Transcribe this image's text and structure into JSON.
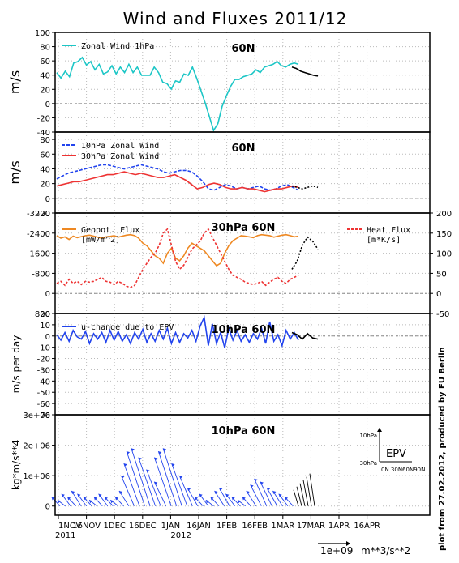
{
  "title": "Wind and Fluxes 2011/12",
  "credit": "plot from 27.02.2012, produced by FU Berlin",
  "x_ticks": [
    "1NOV",
    "16NOV",
    "1DEC",
    "16DEC",
    "1JAN",
    "16JAN",
    "1FEB",
    "16FEB",
    "1MAR",
    "17MAR",
    "1APR",
    "16APR"
  ],
  "x_year_labels": [
    "2011",
    "2012"
  ],
  "bottom_scale": {
    "ref": "1e+09",
    "unit": "m**3/s**2"
  },
  "colors": {
    "cyan": "#1cc6c6",
    "blue": "#2244ee",
    "red": "#ee3333",
    "orange": "#ee8822",
    "forecast": "#000000"
  },
  "chart_data": [
    {
      "id": "p1",
      "type": "line",
      "ylabel": "m/s",
      "region": "60N",
      "ylim": [
        -40,
        100
      ],
      "y_ticks": [
        "100",
        "80",
        "60",
        "40",
        "20",
        "0",
        "-20",
        "-40"
      ],
      "series": [
        {
          "name": "Zonal Wind 1hPa",
          "color": "cyan",
          "values": [
            44,
            36,
            46,
            38,
            58,
            60,
            66,
            55,
            60,
            48,
            56,
            42,
            45,
            54,
            42,
            52,
            44,
            56,
            44,
            52,
            40,
            40,
            40,
            52,
            44,
            30,
            28,
            20,
            32,
            30,
            42,
            40,
            52,
            36,
            18,
            0,
            -20,
            -40,
            -30,
            -5,
            10,
            24,
            34,
            34,
            38,
            40,
            42,
            48,
            44,
            52,
            54,
            56,
            60,
            54,
            52,
            56,
            58,
            56
          ]
        },
        {
          "name": "",
          "color": "forecast",
          "values": [
            52,
            50,
            46,
            44,
            42,
            40,
            39
          ]
        }
      ]
    },
    {
      "id": "p2",
      "type": "line",
      "ylabel": "m/s",
      "region": "60N",
      "ylim": [
        -20,
        90
      ],
      "y_ticks": [
        "80",
        "60",
        "40",
        "20",
        "0",
        "-20"
      ],
      "series": [
        {
          "name": "10hPa Zonal Wind",
          "color": "blue",
          "values": [
            26,
            30,
            34,
            36,
            38,
            40,
            42,
            44,
            46,
            46,
            44,
            42,
            40,
            42,
            44,
            46,
            44,
            42,
            40,
            36,
            34,
            36,
            38,
            38,
            36,
            30,
            22,
            12,
            10,
            14,
            18,
            16,
            12,
            14,
            12,
            14,
            16,
            12,
            10,
            12,
            16,
            18,
            14,
            10
          ]
        },
        {
          "name": "30hPa Zonal Wind",
          "color": "red",
          "values": [
            16,
            18,
            20,
            22,
            22,
            24,
            26,
            28,
            30,
            32,
            32,
            34,
            36,
            34,
            32,
            34,
            32,
            30,
            28,
            28,
            30,
            32,
            28,
            24,
            18,
            12,
            14,
            18,
            20,
            18,
            14,
            12,
            12,
            14,
            12,
            12,
            10,
            8,
            10,
            12,
            12,
            14,
            16,
            14
          ]
        },
        {
          "name": "",
          "color": "forecast",
          "values": [
            16,
            14,
            12,
            14,
            16,
            14
          ]
        }
      ]
    },
    {
      "id": "p3",
      "type": "line",
      "region": "30hPa 60N",
      "ylim_left": [
        -3200,
        800
      ],
      "y_ticks_left": [
        "-3200",
        "-2400",
        "-1600",
        "-800",
        "0",
        "800"
      ],
      "ylim_right": [
        -50,
        200
      ],
      "y_ticks_right": [
        "200",
        "150",
        "100",
        "50",
        "0",
        "-50"
      ],
      "series": [
        {
          "name": "Geopot. Flux",
          "unit": "[mW/m^2]",
          "color": "orange",
          "values": [
            100,
            200,
            150,
            250,
            120,
            180,
            140,
            100,
            80,
            120,
            160,
            200,
            150,
            130,
            100,
            160,
            120,
            80,
            60,
            100,
            200,
            400,
            500,
            700,
            900,
            1000,
            1200,
            800,
            600,
            1000,
            1100,
            900,
            600,
            400,
            500,
            600,
            700,
            900,
            1100,
            1300,
            1200,
            800,
            500,
            300,
            200,
            100,
            120,
            150,
            180,
            100,
            60,
            80,
            100,
            160,
            120,
            80,
            60,
            100,
            150,
            120
          ]
        },
        {
          "name": "Heat Flux",
          "unit": "[m*K/s]",
          "color": "red",
          "values": [
            25,
            30,
            20,
            35,
            25,
            30,
            22,
            30,
            28,
            30,
            35,
            40,
            30,
            28,
            22,
            30,
            25,
            18,
            15,
            20,
            40,
            60,
            75,
            90,
            100,
            120,
            150,
            160,
            120,
            80,
            60,
            70,
            90,
            110,
            120,
            130,
            150,
            160,
            140,
            120,
            100,
            80,
            60,
            45,
            40,
            35,
            28,
            25,
            22,
            25,
            30,
            20,
            28,
            35,
            40,
            30,
            25,
            35,
            40,
            45
          ]
        },
        {
          "name": "",
          "color": "forecast",
          "values": [
            60,
            80,
            120,
            140,
            130,
            110
          ]
        }
      ]
    },
    {
      "id": "p4",
      "type": "line",
      "ylabel": "m/s per day",
      "region": "10hPa 60N",
      "ylim": [
        -70,
        20
      ],
      "y_ticks": [
        "20",
        "10",
        "0",
        "-10",
        "-20",
        "-30",
        "-40",
        "-50",
        "-60",
        "-70"
      ],
      "series": [
        {
          "name": "u-change due to EPV",
          "color": "blue",
          "values": [
            2,
            -3,
            4,
            -4,
            6,
            0,
            -2,
            5,
            -6,
            3,
            -2,
            4,
            -5,
            6,
            -3,
            5,
            -4,
            2,
            -6,
            4,
            -2,
            7,
            -5,
            3,
            -4,
            6,
            -2,
            8,
            -6,
            4,
            -5,
            3,
            -1,
            6,
            -4,
            10,
            18,
            -8,
            12,
            -6,
            4,
            -10,
            8,
            -3,
            6,
            -4,
            2,
            -5,
            3,
            -2,
            8,
            -6,
            14,
            -4,
            2,
            -8,
            6,
            -2,
            4,
            -3
          ]
        },
        {
          "name": "",
          "color": "forecast",
          "values": [
            4,
            2,
            -2,
            3,
            -1,
            -2
          ]
        }
      ]
    },
    {
      "id": "p5",
      "type": "quiver",
      "ylabel": "kg*m/s**4",
      "region": "10hPa 60N",
      "legend_label": "EPV",
      "inset_ticks_y": [
        "10hPa",
        "30hPa"
      ],
      "inset_ticks_x": "0N 30N60N90N",
      "y_ticks": [
        "3e+06",
        "2e+06",
        "1e+06",
        "0"
      ],
      "ylim": [
        -300000.0,
        3000000.0
      ],
      "arrow_tips": [
        0.3,
        0.2,
        0.4,
        0.3,
        0.5,
        0.4,
        0.3,
        0.2,
        0.3,
        0.4,
        0.3,
        0.2,
        0.3,
        0.5,
        1.0,
        1.4,
        1.8,
        1.9,
        1.6,
        1.2,
        0.8,
        1.6,
        1.8,
        1.9,
        1.4,
        1.0,
        0.6,
        0.3,
        0.4,
        0.2,
        0.3,
        0.5,
        0.6,
        0.4,
        0.3,
        0.2,
        0.3,
        0.5,
        0.7,
        0.9,
        0.8,
        0.6,
        0.5,
        0.4,
        0.3
      ]
    }
  ]
}
